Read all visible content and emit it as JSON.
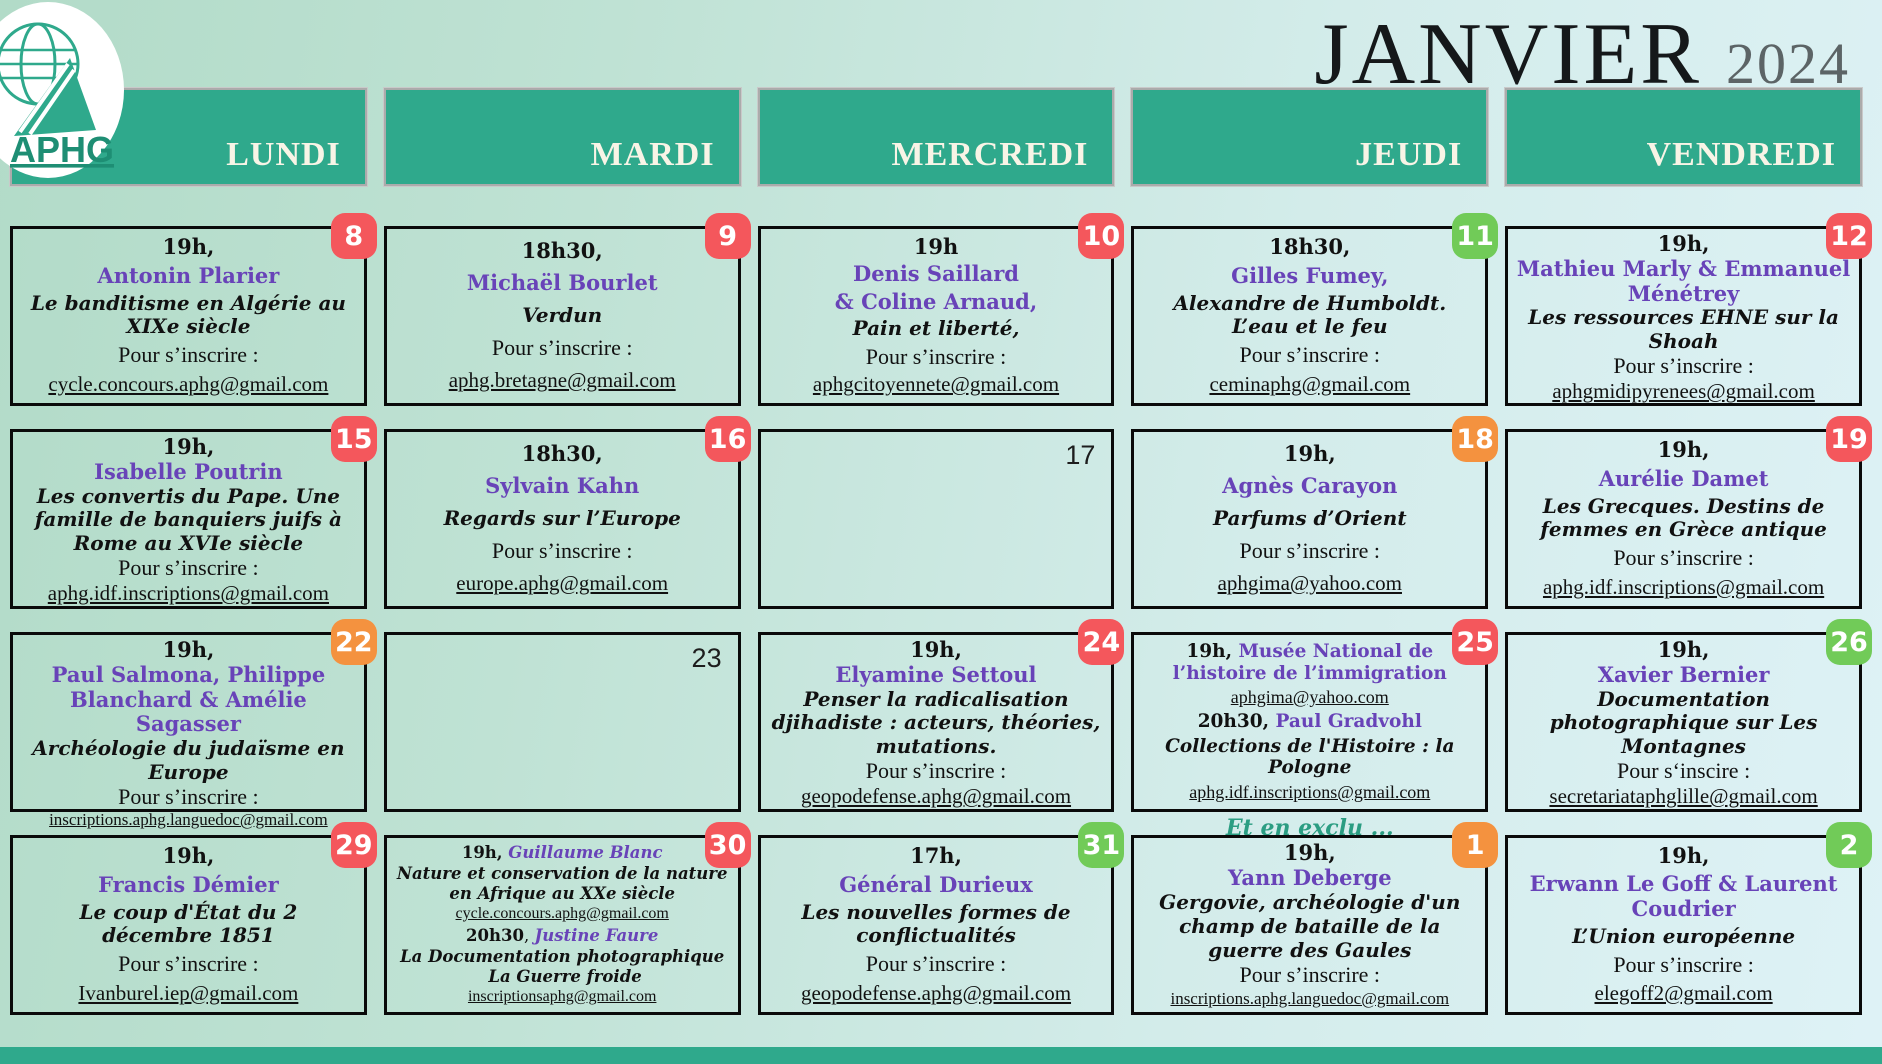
{
  "page": {
    "month_title": "JANVIER",
    "year": "2024",
    "logo": {
      "text": "APHG"
    }
  },
  "colors": {
    "teal": "#2FA98C",
    "purple": "#6843B8",
    "badge_red": "#F4575C",
    "badge_green": "#71CB58",
    "badge_orange": "#F4923F",
    "title_black": "#15181A",
    "year_gray": "#5C6466"
  },
  "calendar": {
    "days": [
      "LUNDI",
      "MARDI",
      "MERCREDI",
      "JEUDI",
      "VENDREDI"
    ],
    "weeks": [
      [
        {
          "day": "8",
          "badge": "red",
          "lines": [
            {
              "t": "time",
              "x": "19h,"
            },
            {
              "t": "name",
              "x": "Antonin Plarier"
            },
            {
              "t": "title",
              "x": "Le banditisme en Algérie au XIXe siècle"
            },
            {
              "t": "ins",
              "x": "Pour s’inscrire :"
            },
            {
              "t": "email",
              "x": "cycle.concours.aphg@gmail.com"
            }
          ]
        },
        {
          "day": "9",
          "badge": "red",
          "lines": [
            {
              "t": "time",
              "x": "18h30,"
            },
            {
              "t": "name",
              "x": "Michaël Bourlet"
            },
            {
              "t": "title",
              "x": "Verdun"
            },
            {
              "t": "ins",
              "x": "Pour s’inscrire :"
            },
            {
              "t": "email",
              "x": "aphg.bretagne@gmail.com"
            }
          ]
        },
        {
          "day": "10",
          "badge": "red",
          "lines": [
            {
              "t": "time",
              "x": "19h"
            },
            {
              "t": "name",
              "x": "Denis Saillard"
            },
            {
              "t": "name",
              "x": "& Coline Arnaud,"
            },
            {
              "t": "title",
              "x": "Pain et liberté,"
            },
            {
              "t": "ins",
              "x": "Pour s’inscrire :"
            },
            {
              "t": "email",
              "x": "aphgcitoyennete@gmail.com"
            }
          ]
        },
        {
          "day": "11",
          "badge": "green",
          "lines": [
            {
              "t": "time",
              "x": "18h30,"
            },
            {
              "t": "name",
              "x": "Gilles Fumey,"
            },
            {
              "t": "title",
              "x": "Alexandre de Humboldt. L’eau et le feu"
            },
            {
              "t": "ins",
              "x": "Pour s’inscrire :"
            },
            {
              "t": "email",
              "x": "ceminaphg@gmail.com"
            }
          ]
        },
        {
          "day": "12",
          "badge": "red",
          "lines": [
            {
              "t": "time",
              "x": "19h,"
            },
            {
              "t": "name",
              "x": "Mathieu Marly & Emmanuel Ménétrey"
            },
            {
              "t": "title",
              "x": "Les ressources EHNE sur la Shoah"
            },
            {
              "t": "ins",
              "x": "Pour s’inscrire :"
            },
            {
              "t": "email",
              "x": "aphgmidipyrenees@gmail.com"
            }
          ]
        }
      ],
      [
        {
          "day": "15",
          "badge": "red",
          "lines": [
            {
              "t": "time",
              "x": "19h,"
            },
            {
              "t": "name",
              "x": "Isabelle Poutrin"
            },
            {
              "t": "title",
              "x": "Les convertis du Pape. Une famille de banquiers juifs à Rome au XVIe siècle"
            },
            {
              "t": "ins",
              "x": "Pour s’inscrire :"
            },
            {
              "t": "email",
              "x": "aphg.idf.inscriptions@gmail.com"
            }
          ]
        },
        {
          "day": "16",
          "badge": "red",
          "lines": [
            {
              "t": "time",
              "x": "18h30,"
            },
            {
              "t": "name",
              "x": "Sylvain Kahn"
            },
            {
              "t": "title",
              "x": "Regards sur l’Europe"
            },
            {
              "t": "ins",
              "x": "Pour s’inscrire :"
            },
            {
              "t": "email",
              "x": "europe.aphg@gmail.com"
            }
          ]
        },
        {
          "day": "17",
          "empty": true
        },
        {
          "day": "18",
          "badge": "orange",
          "lines": [
            {
              "t": "time",
              "x": "19h,"
            },
            {
              "t": "name",
              "x": "Agnès Carayon"
            },
            {
              "t": "title",
              "x": "Parfums d’Orient"
            },
            {
              "t": "ins",
              "x": "Pour s’inscrire :"
            },
            {
              "t": "email",
              "x": "aphgima@yahoo.com"
            }
          ]
        },
        {
          "day": "19",
          "badge": "red",
          "lines": [
            {
              "t": "time",
              "x": "19h,"
            },
            {
              "t": "name",
              "x": "Aurélie Damet"
            },
            {
              "t": "title",
              "x": "Les Grecques. Destins de femmes en Grèce antique"
            },
            {
              "t": "ins",
              "x": "Pour s’inscrire :"
            },
            {
              "t": "email",
              "x": "aphg.idf.inscriptions@gmail.com"
            }
          ]
        }
      ],
      [
        {
          "day": "22",
          "badge": "orange",
          "lines": [
            {
              "t": "time",
              "x": "19h,"
            },
            {
              "t": "name",
              "x": "Paul Salmona, Philippe Blanchard & Amélie Sagasser"
            },
            {
              "t": "title",
              "x": "Archéologie du judaïsme en Europe"
            },
            {
              "t": "ins",
              "x": "Pour s’inscrire :"
            },
            {
              "t": "email",
              "x": "inscriptions.aphg.languedoc@gmail.com"
            }
          ]
        },
        {
          "day": "23",
          "empty": true
        },
        {
          "day": "24",
          "badge": "red",
          "lines": [
            {
              "t": "time",
              "x": "19h,"
            },
            {
              "t": "name",
              "x": "Elyamine Settoul"
            },
            {
              "t": "title",
              "x": "Penser la radicalisation djihadiste : acteurs, théories, mutations."
            },
            {
              "t": "ins",
              "x": "Pour s’inscrire :"
            },
            {
              "t": "email",
              "x": "geopodefense.aphg@gmail.com"
            }
          ]
        },
        {
          "day": "25",
          "badge": "red",
          "size": "mid",
          "note": "Et en exclu ...",
          "lines": [
            {
              "t": "mix",
              "seg": [
                {
                  "s": "time",
                  "x": "19h, "
                },
                {
                  "s": "name",
                  "x": "Musée National de l’histoire de l’immigration"
                }
              ]
            },
            {
              "t": "email",
              "x": "aphgima@yahoo.com"
            },
            {
              "t": "mix",
              "seg": [
                {
                  "s": "time",
                  "x": "20h30, "
                },
                {
                  "s": "name",
                  "x": "Paul Gradvohl"
                }
              ]
            },
            {
              "t": "title",
              "x": "Collections de l'Histoire : la Pologne"
            },
            {
              "t": "email",
              "x": "aphg.idf.inscriptions@gmail.com"
            }
          ]
        },
        {
          "day": "26",
          "badge": "green",
          "lines": [
            {
              "t": "time",
              "x": "19h,"
            },
            {
              "t": "name",
              "x": "Xavier Bernier"
            },
            {
              "t": "title",
              "x": "Documentation photographique sur Les Montagnes"
            },
            {
              "t": "ins",
              "x": "Pour s‘inscire :"
            },
            {
              "t": "email",
              "x": "secretariataphglille@gmail.com"
            }
          ]
        }
      ],
      [
        {
          "day": "29",
          "badge": "red",
          "lines": [
            {
              "t": "time",
              "x": "19h,"
            },
            {
              "t": "name",
              "x": "Francis Démier"
            },
            {
              "t": "title",
              "x": "Le coup d'État du 2 décembre 1851"
            },
            {
              "t": "ins",
              "x": "Pour s’inscrire :"
            },
            {
              "t": "email",
              "x": "Ivanburel.iep@gmail.com"
            }
          ]
        },
        {
          "day": "30",
          "badge": "red",
          "size": "small",
          "lines": [
            {
              "t": "mix",
              "seg": [
                {
                  "s": "time",
                  "x": "19h, "
                },
                {
                  "s": "nameit",
                  "x": "Guillaume Blanc"
                }
              ]
            },
            {
              "t": "title",
              "x": "Nature et conservation de la nature en Afrique au XXe siècle"
            },
            {
              "t": "email",
              "x": "cycle.concours.aphg@gmail.com"
            },
            {
              "t": "mix",
              "seg": [
                {
                  "s": "time",
                  "x": "20h30"
                },
                {
                  "s": "plain",
                  "x": ", "
                },
                {
                  "s": "nameit",
                  "x": "Justine Faure"
                }
              ]
            },
            {
              "t": "title",
              "x": "La Documentation photographique  La Guerre froide"
            },
            {
              "t": "email",
              "x": "inscriptionsaphg@gmail.com"
            }
          ]
        },
        {
          "day": "31",
          "badge": "green",
          "lines": [
            {
              "t": "time",
              "x": "17h,"
            },
            {
              "t": "name",
              "x": "Général Durieux"
            },
            {
              "t": "title",
              "x": "Les nouvelles formes de conflictualités"
            },
            {
              "t": "ins",
              "x": "Pour s’inscrire :"
            },
            {
              "t": "email",
              "x": "geopodefense.aphg@gmail.com"
            }
          ]
        },
        {
          "day": "1",
          "badge": "orange",
          "lines": [
            {
              "t": "time",
              "x": "19h,"
            },
            {
              "t": "name",
              "x": "Yann Deberge"
            },
            {
              "t": "title",
              "x": "Gergovie, archéologie d'un champ de bataille de la guerre des Gaules"
            },
            {
              "t": "ins",
              "x": "Pour s’inscrire :"
            },
            {
              "t": "email",
              "x": "inscriptions.aphg.languedoc@gmail.com"
            }
          ]
        },
        {
          "day": "2",
          "badge": "green",
          "lines": [
            {
              "t": "time",
              "x": "19h,"
            },
            {
              "t": "name",
              "x": "Erwann Le Goff & Laurent Coudrier"
            },
            {
              "t": "title",
              "x": "L’Union européenne"
            },
            {
              "t": "ins",
              "x": "Pour s’inscrire :"
            },
            {
              "t": "email",
              "x": "elegoff2@gmail.com"
            }
          ]
        }
      ]
    ]
  }
}
